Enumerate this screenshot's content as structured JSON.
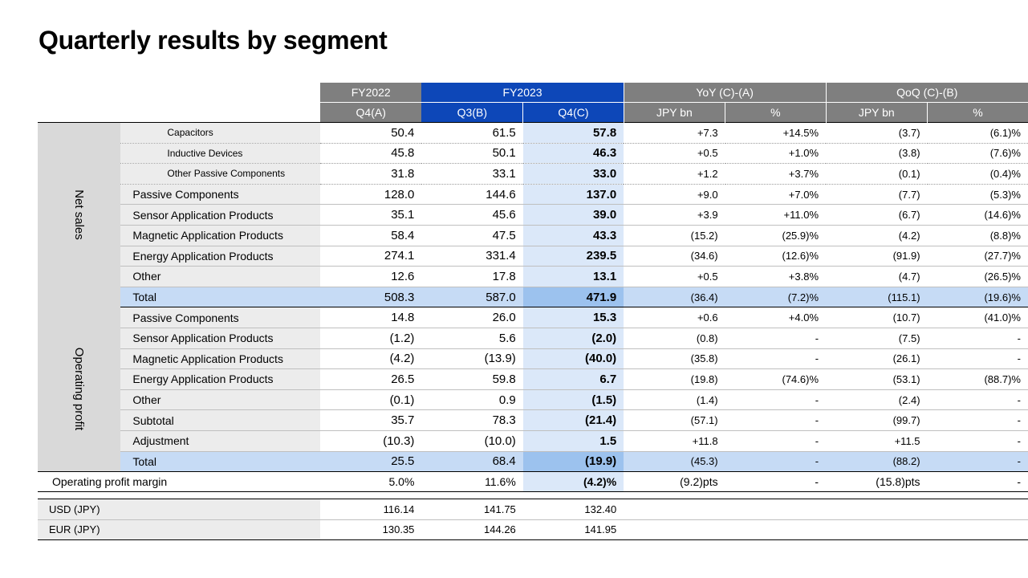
{
  "title": "Quarterly results by segment",
  "header": {
    "fy2022": "FY2022",
    "fy2023": "FY2023",
    "yoy": "YoY (C)-(A)",
    "qoq": "QoQ (C)-(B)",
    "unit": "(JPY bn)",
    "q4a": "Q4(A)",
    "q3b": "Q3(B)",
    "q4c": "Q4(C)",
    "jpybn": "JPY bn",
    "pct": "%"
  },
  "net_sales": {
    "label": "Net sales",
    "rows": [
      {
        "name": "Capacitors",
        "a": "50.4",
        "b": "61.5",
        "c": "57.8",
        "yoy": "+7.3",
        "yoyp": "+14.5%",
        "qoq": "(3.7)",
        "qoqp": "(6.1)%"
      },
      {
        "name": "Inductive Devices",
        "a": "45.8",
        "b": "50.1",
        "c": "46.3",
        "yoy": "+0.5",
        "yoyp": "+1.0%",
        "qoq": "(3.8)",
        "qoqp": "(7.6)%"
      },
      {
        "name": "Other Passive Components",
        "a": "31.8",
        "b": "33.1",
        "c": "33.0",
        "yoy": "+1.2",
        "yoyp": "+3.7%",
        "qoq": "(0.1)",
        "qoqp": "(0.4)%"
      },
      {
        "name": "Passive Components",
        "a": "128.0",
        "b": "144.6",
        "c": "137.0",
        "yoy": "+9.0",
        "yoyp": "+7.0%",
        "qoq": "(7.7)",
        "qoqp": "(5.3)%"
      },
      {
        "name": "Sensor Application Products",
        "a": "35.1",
        "b": "45.6",
        "c": "39.0",
        "yoy": "+3.9",
        "yoyp": "+11.0%",
        "qoq": "(6.7)",
        "qoqp": "(14.6)%"
      },
      {
        "name": "Magnetic Application Products",
        "a": "58.4",
        "b": "47.5",
        "c": "43.3",
        "yoy": "(15.2)",
        "yoyp": "(25.9)%",
        "qoq": "(4.2)",
        "qoqp": "(8.8)%"
      },
      {
        "name": "Energy Application Products",
        "a": "274.1",
        "b": "331.4",
        "c": "239.5",
        "yoy": "(34.6)",
        "yoyp": "(12.6)%",
        "qoq": "(91.9)",
        "qoqp": "(27.7)%"
      },
      {
        "name": "Other",
        "a": "12.6",
        "b": "17.8",
        "c": "13.1",
        "yoy": "+0.5",
        "yoyp": "+3.8%",
        "qoq": "(4.7)",
        "qoqp": "(26.5)%"
      },
      {
        "name": "Total",
        "a": "508.3",
        "b": "587.0",
        "c": "471.9",
        "yoy": "(36.4)",
        "yoyp": "(7.2)%",
        "qoq": "(115.1)",
        "qoqp": "(19.6)%"
      }
    ]
  },
  "operating_profit": {
    "label": "Operating profit",
    "rows": [
      {
        "name": "Passive Components",
        "a": "14.8",
        "b": "26.0",
        "c": "15.3",
        "yoy": "+0.6",
        "yoyp": "+4.0%",
        "qoq": "(10.7)",
        "qoqp": "(41.0)%"
      },
      {
        "name": "Sensor Application Products",
        "a": "(1.2)",
        "b": "5.6",
        "c": "(2.0)",
        "yoy": "(0.8)",
        "yoyp": "-",
        "qoq": "(7.5)",
        "qoqp": "-"
      },
      {
        "name": "Magnetic Application Products",
        "a": "(4.2)",
        "b": "(13.9)",
        "c": "(40.0)",
        "yoy": "(35.8)",
        "yoyp": "-",
        "qoq": "(26.1)",
        "qoqp": "-"
      },
      {
        "name": "Energy Application Products",
        "a": "26.5",
        "b": "59.8",
        "c": "6.7",
        "yoy": "(19.8)",
        "yoyp": "(74.6)%",
        "qoq": "(53.1)",
        "qoqp": "(88.7)%"
      },
      {
        "name": "Other",
        "a": "(0.1)",
        "b": "0.9",
        "c": "(1.5)",
        "yoy": "(1.4)",
        "yoyp": "-",
        "qoq": "(2.4)",
        "qoqp": "-"
      },
      {
        "name": "Subtotal",
        "a": "35.7",
        "b": "78.3",
        "c": "(21.4)",
        "yoy": "(57.1)",
        "yoyp": "-",
        "qoq": "(99.7)",
        "qoqp": "-"
      },
      {
        "name": "Adjustment",
        "a": "(10.3)",
        "b": "(10.0)",
        "c": "1.5",
        "yoy": "+11.8",
        "yoyp": "-",
        "qoq": "+11.5",
        "qoqp": "-"
      },
      {
        "name": "Total",
        "a": "25.5",
        "b": "68.4",
        "c": "(19.9)",
        "yoy": "(45.3)",
        "yoyp": "-",
        "qoq": "(88.2)",
        "qoqp": "-"
      }
    ]
  },
  "margin": {
    "name": "Operating profit margin",
    "a": "5.0%",
    "b": "11.6%",
    "c": "(4.2)%",
    "yoy": "(9.2)pts",
    "yoyp": "-",
    "qoq": "(15.8)pts",
    "qoqp": "-"
  },
  "fx": [
    {
      "name": "USD (JPY)",
      "a": "116.14",
      "b": "141.75",
      "c": "132.40"
    },
    {
      "name": "EUR (JPY)",
      "a": "130.35",
      "b": "144.26",
      "c": "141.95"
    }
  ]
}
